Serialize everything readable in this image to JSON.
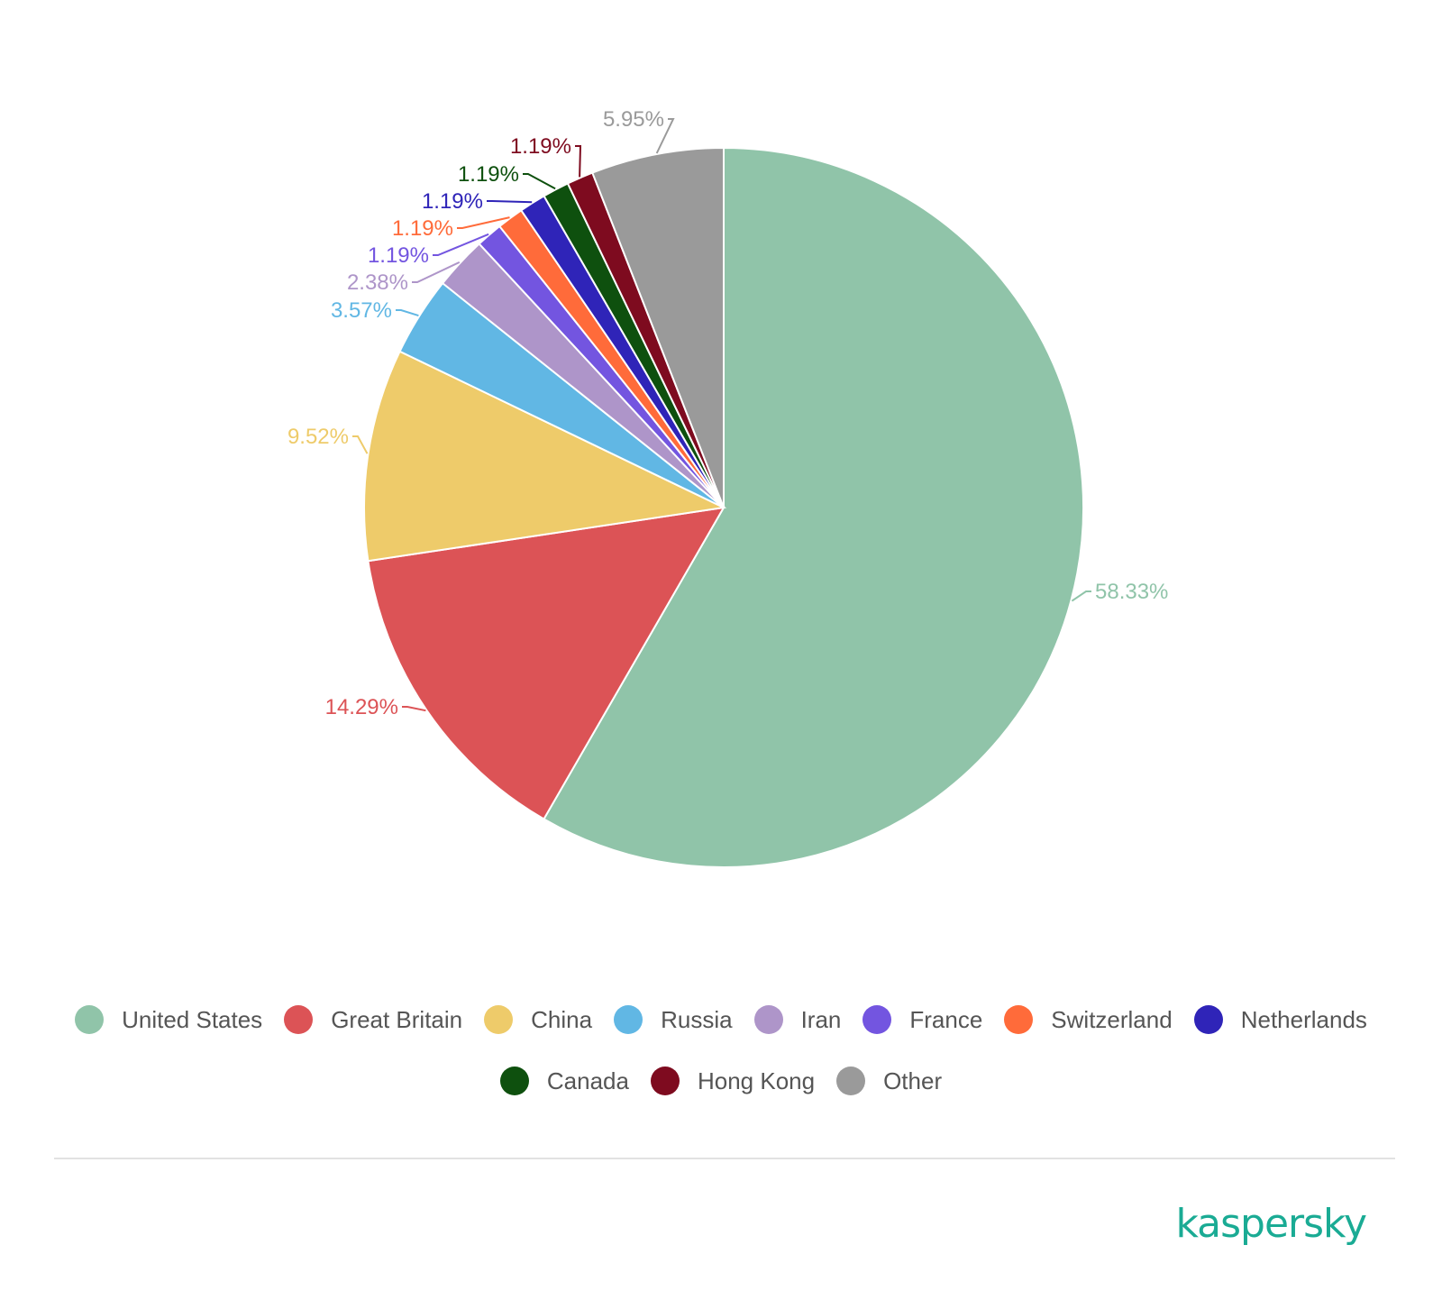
{
  "chart_data": {
    "type": "pie",
    "title": "",
    "slices": [
      {
        "label": "United States",
        "value": 58.33,
        "value_label": "58.33%",
        "color": "#90c4a9"
      },
      {
        "label": "Great Britain",
        "value": 14.29,
        "value_label": "14.29%",
        "color": "#dc5356"
      },
      {
        "label": "China",
        "value": 9.52,
        "value_label": "9.52%",
        "color": "#eecb6a"
      },
      {
        "label": "Russia",
        "value": 3.57,
        "value_label": "3.57%",
        "color": "#61b7e4"
      },
      {
        "label": "Iran",
        "value": 2.38,
        "value_label": "2.38%",
        "color": "#ae95c9"
      },
      {
        "label": "France",
        "value": 1.19,
        "value_label": "1.19%",
        "color": "#7355e0"
      },
      {
        "label": "Switzerland",
        "value": 1.19,
        "value_label": "1.19%",
        "color": "#ff6b3a"
      },
      {
        "label": "Netherlands",
        "value": 1.19,
        "value_label": "1.19%",
        "color": "#2f24b8"
      },
      {
        "label": "Canada",
        "value": 1.19,
        "value_label": "1.19%",
        "color": "#0e500e"
      },
      {
        "label": "Hong Kong",
        "value": 1.19,
        "value_label": "1.19%",
        "color": "#7e0b1f"
      },
      {
        "label": "Other",
        "value": 5.95,
        "value_label": "5.95%",
        "color": "#9a9a9a"
      }
    ],
    "start_angle": "12 o'clock",
    "direction": "clockwise",
    "legend_position": "bottom"
  },
  "legend": {
    "row1": [
      "United States",
      "Great Britain",
      "China",
      "Russia",
      "Iran",
      "France",
      "Switzerland",
      "Netherlands"
    ],
    "row2": [
      "Canada",
      "Hong Kong",
      "Other"
    ]
  },
  "brand": {
    "logo_text": "kaspersky"
  }
}
